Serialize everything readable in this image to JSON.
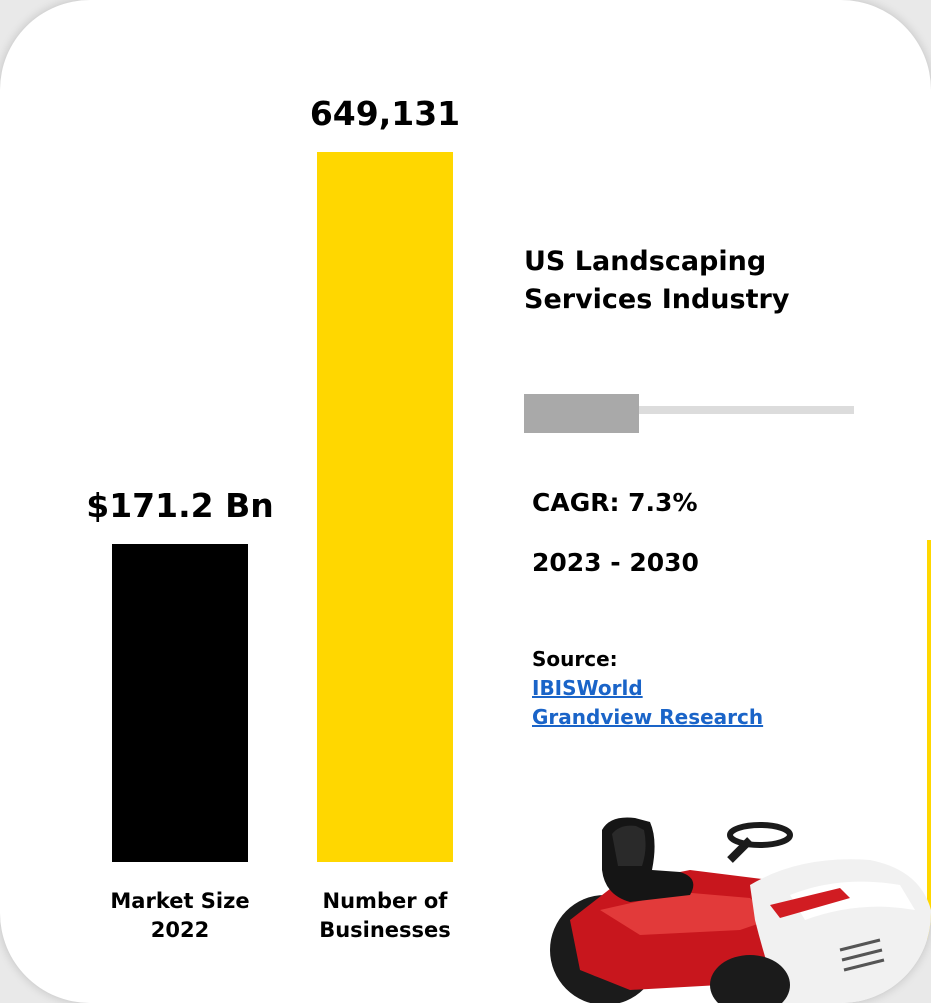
{
  "chart_data": {
    "type": "bar",
    "categories": [
      "Market Size 2022",
      "Number of Businesses"
    ],
    "series": [
      {
        "values": [
          171.2,
          649131
        ]
      }
    ],
    "data_labels": [
      "$171.2 Bn",
      "649,131"
    ],
    "category_labels": [
      [
        "Market Size",
        "2022"
      ],
      [
        "Number of",
        "Businesses"
      ]
    ],
    "bar_colors": [
      "#000000",
      "#FFD700"
    ]
  },
  "info": {
    "title_line1": "US Landscaping",
    "title_line2": "Services Industry",
    "cagr": "CAGR: 7.3%",
    "period": "2023 - 2030",
    "source_label": "Source:",
    "sources": [
      "IBISWorld",
      "Grandview Research"
    ]
  },
  "colors": {
    "accent": "#FFD700",
    "link": "#1a64c8",
    "divider": "#a9a9a9"
  },
  "icons": {
    "illustration": "riding-lawn-mower"
  }
}
